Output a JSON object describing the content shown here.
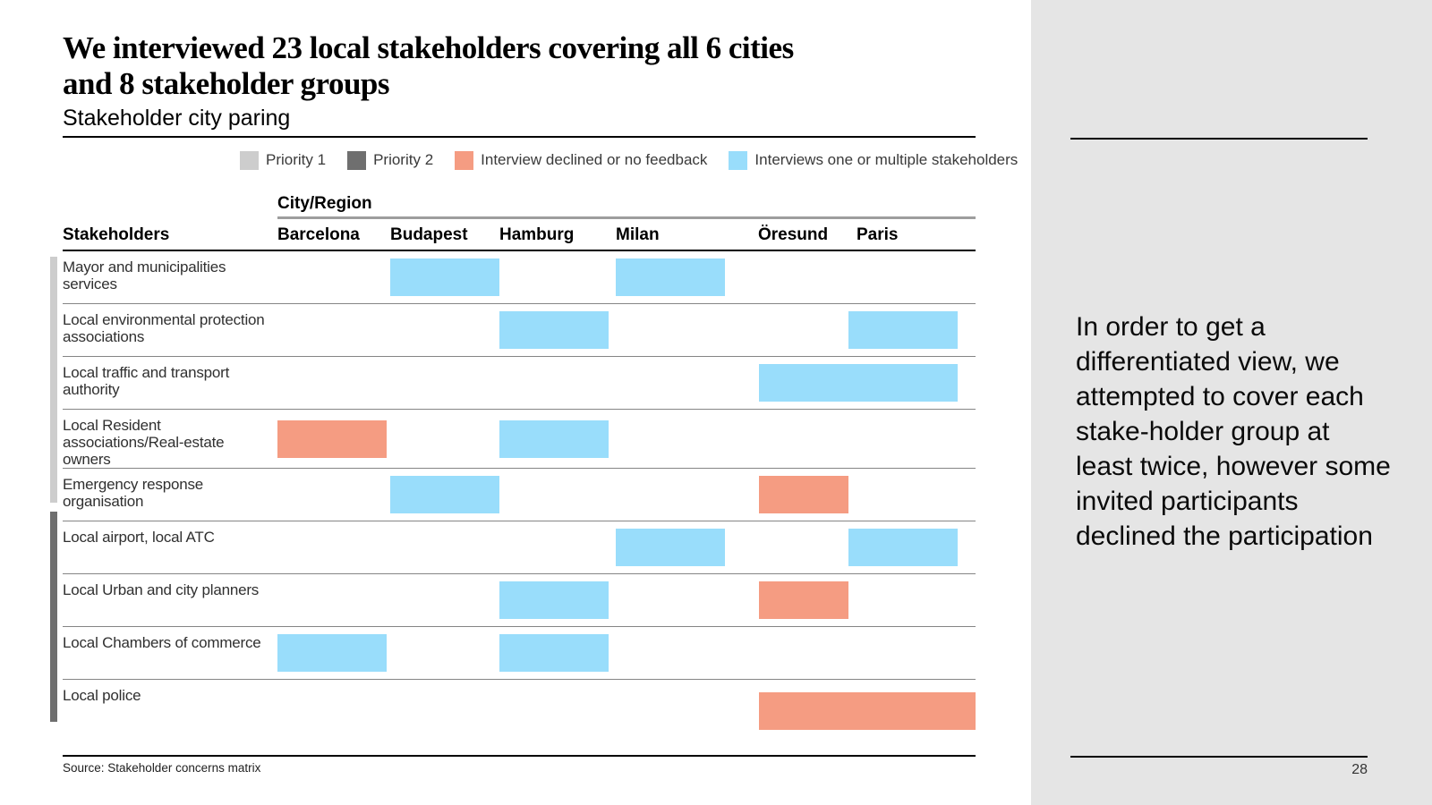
{
  "slide": {
    "title_line1": "We interviewed 23 local stakeholders covering all 6 cities",
    "title_line2": "and 8 stakeholder groups",
    "subtitle": "Stakeholder city paring",
    "source": "Source: Stakeholder concerns matrix",
    "page_number": "28"
  },
  "colors": {
    "interviews": "#99ddfb",
    "declined": "#f59c82",
    "priority1": "#cdcdcd",
    "priority2": "#6f6f6f",
    "panel_bg": "#e5e5e5"
  },
  "legend": {
    "items": [
      {
        "label": "Priority 1",
        "type": "priority1"
      },
      {
        "label": "Priority 2",
        "type": "priority2"
      },
      {
        "label": "Interview declined or no feedback",
        "type": "declined"
      },
      {
        "label": "Interviews one or multiple stakeholders",
        "type": "interviews"
      }
    ]
  },
  "table": {
    "group_header": "City/Region",
    "row_header": "Stakeholders",
    "columns": [
      "Barcelona",
      "Budapest",
      "Hamburg",
      "Milan",
      "Öresund",
      "Paris"
    ],
    "rows": [
      {
        "label": "Mayor and municipalities services",
        "priority": 1,
        "cells": [
          null,
          "interviews",
          null,
          "interviews",
          null,
          null
        ]
      },
      {
        "label": "Local environmental protection associations",
        "priority": 1,
        "cells": [
          null,
          null,
          "interviews",
          null,
          null,
          "interviews"
        ]
      },
      {
        "label": "Local traffic and transport authority",
        "priority": 1,
        "cells": [
          null,
          null,
          null,
          null,
          "interviews",
          "interviews"
        ]
      },
      {
        "label": "Local Resident associations/Real-estate owners",
        "priority": 1,
        "cells": [
          "declined",
          null,
          "interviews",
          null,
          null,
          null
        ]
      },
      {
        "label": "Emergency response organisation",
        "priority": 1,
        "cells": [
          null,
          "interviews",
          null,
          null,
          "declined",
          null
        ]
      },
      {
        "label": "Local airport, local ATC",
        "priority": 2,
        "cells": [
          null,
          null,
          null,
          "interviews",
          null,
          "interviews"
        ]
      },
      {
        "label": "Local Urban and city planners",
        "priority": 2,
        "cells": [
          null,
          null,
          "interviews",
          null,
          "declined",
          null
        ]
      },
      {
        "label": "Local Chambers of commerce",
        "priority": 2,
        "cells": [
          "interviews",
          null,
          "interviews",
          null,
          null,
          null
        ]
      },
      {
        "label": "Local police",
        "priority": 2,
        "cells": [
          null,
          null,
          null,
          null,
          {
            "type": "declined",
            "span": 2
          },
          null
        ]
      }
    ]
  },
  "sidebar": {
    "note": "In order to get a differentiated view, we attempted to cover each stake-holder group at least twice, however some invited participants declined the participation"
  }
}
